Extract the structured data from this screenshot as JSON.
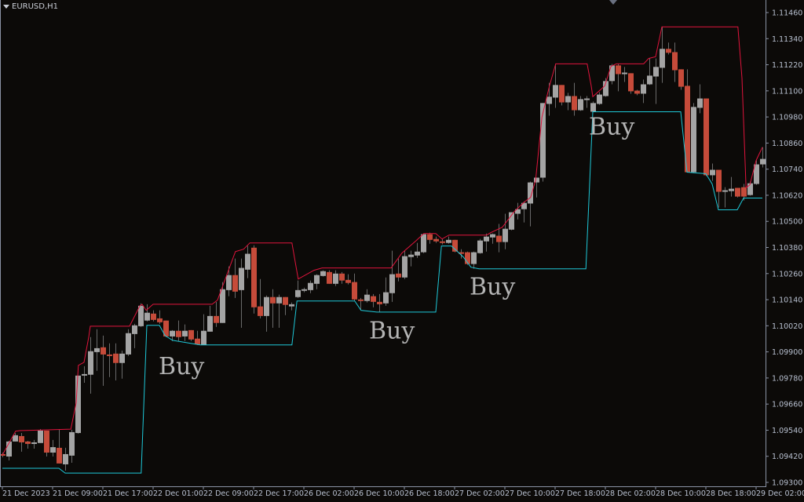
{
  "header": {
    "symbol_label": "EURUSD,H1"
  },
  "colors": {
    "background": "#0c0a08",
    "bull": "#a4a4a4",
    "bear": "#c64b3a",
    "wick": "#6a6a6a",
    "upper_line": "#e0143c",
    "lower_line": "#1ec8d8",
    "axis": "#8a92a4",
    "axis_text": "#b8c0d0",
    "annotation": "#b4b4b4"
  },
  "chart_data": {
    "type": "candlestick",
    "title": "EURUSD,H1",
    "timeframe": "H1",
    "ylim": [
      1.093,
      1.1146
    ],
    "y_ticks": [
      "1.11460",
      "1.11340",
      "1.11220",
      "1.11100",
      "1.10980",
      "1.10860",
      "1.10740",
      "1.10620",
      "1.10500",
      "1.10380",
      "1.10260",
      "1.10140",
      "1.10020",
      "1.09900",
      "1.09780",
      "1.09660",
      "1.09540",
      "1.09420",
      "1.09300"
    ],
    "x_ticks": [
      {
        "bar": 0,
        "label": "21 Dec 2023"
      },
      {
        "bar": 8,
        "label": "21 Dec 09:00"
      },
      {
        "bar": 16,
        "label": "21 Dec 17:00"
      },
      {
        "bar": 24,
        "label": "22 Dec 01:00"
      },
      {
        "bar": 32,
        "label": "22 Dec 09:00"
      },
      {
        "bar": 40,
        "label": "22 Dec 17:00"
      },
      {
        "bar": 48,
        "label": "26 Dec 02:00"
      },
      {
        "bar": 56,
        "label": "26 Dec 10:00"
      },
      {
        "bar": 64,
        "label": "26 Dec 18:00"
      },
      {
        "bar": 72,
        "label": "27 Dec 02:00"
      },
      {
        "bar": 80,
        "label": "27 Dec 10:00"
      },
      {
        "bar": 88,
        "label": "27 Dec 18:00"
      },
      {
        "bar": 96,
        "label": "28 Dec 02:00"
      },
      {
        "bar": 104,
        "label": "28 Dec 10:00"
      },
      {
        "bar": 112,
        "label": "28 Dec 18:00"
      },
      {
        "bar": 120,
        "label": "29 Dec 02:00"
      }
    ],
    "ohlc": [
      [
        1.0943,
        1.09437,
        1.09416,
        1.09423
      ],
      [
        1.09419,
        1.09491,
        1.09401,
        1.09488
      ],
      [
        1.09488,
        1.09527,
        1.09488,
        1.09517
      ],
      [
        1.09513,
        1.09527,
        1.09441,
        1.09484
      ],
      [
        1.09488,
        1.09491,
        1.09455,
        1.09477
      ],
      [
        1.09477,
        1.09495,
        1.09455,
        1.09484
      ],
      [
        1.09481,
        1.09545,
        1.09481,
        1.09538
      ],
      [
        1.09538,
        1.09538,
        1.09419,
        1.09437
      ],
      [
        1.09437,
        1.09495,
        1.09419,
        1.09462
      ],
      [
        1.09459,
        1.09542,
        1.09387,
        1.09387
      ],
      [
        1.09383,
        1.09459,
        1.09354,
        1.0943
      ],
      [
        1.09423,
        1.09542,
        1.0939,
        1.09531
      ],
      [
        1.09527,
        1.09791,
        1.09524,
        1.09791
      ],
      [
        1.09791,
        1.09834,
        1.09758,
        1.09798
      ],
      [
        1.09795,
        1.09968,
        1.09708,
        1.09903
      ],
      [
        1.09899,
        1.10004,
        1.09813,
        1.09917
      ],
      [
        1.09921,
        1.09975,
        1.09744,
        1.09888
      ],
      [
        1.09888,
        1.09939,
        1.09784,
        1.09885
      ],
      [
        1.09892,
        1.09939,
        1.09769,
        1.09849
      ],
      [
        1.09849,
        1.09906,
        1.09777,
        1.09892
      ],
      [
        1.09888,
        1.10004,
        1.09881,
        1.09986
      ],
      [
        1.09982,
        1.10029,
        1.09917,
        1.10022
      ],
      [
        1.10018,
        1.10123,
        1.10015,
        1.10112
      ],
      [
        1.10044,
        1.10119,
        1.1004,
        1.1008
      ],
      [
        1.10076,
        1.10091,
        1.1004,
        1.10047
      ],
      [
        1.10054,
        1.10091,
        1.10029,
        1.10036
      ],
      [
        1.10044,
        1.10044,
        1.09968,
        1.09971
      ],
      [
        1.09971,
        1.1,
        1.0995,
        1.09997
      ],
      [
        1.09997,
        1.10044,
        1.0995,
        1.09968
      ],
      [
        1.09971,
        1.10026,
        1.0995,
        1.09997
      ],
      [
        1.1,
        1.1,
        1.0995,
        1.09957
      ],
      [
        1.09961,
        1.09997,
        1.09932,
        1.09935
      ],
      [
        1.09932,
        1.10073,
        1.09932,
        1.09997
      ],
      [
        1.09993,
        1.10112,
        1.09993,
        1.10065
      ],
      [
        1.10065,
        1.1013,
        1.10015,
        1.10033
      ],
      [
        1.10033,
        1.10221,
        1.10033,
        1.10188
      ],
      [
        1.10184,
        1.10293,
        1.10156,
        1.10253
      ],
      [
        1.10253,
        1.10329,
        1.10148,
        1.10177
      ],
      [
        1.10184,
        1.10329,
        1.10011,
        1.10286
      ],
      [
        1.10278,
        1.10387,
        1.10239,
        1.10351
      ],
      [
        1.10379,
        1.1039,
        1.10076,
        1.10105
      ],
      [
        1.10109,
        1.10235,
        1.10054,
        1.10065
      ],
      [
        1.10065,
        1.10159,
        1.09993,
        1.10152
      ],
      [
        1.10152,
        1.10188,
        1.10011,
        1.10123
      ],
      [
        1.10123,
        1.10163,
        1.10011,
        1.10152
      ],
      [
        1.10152,
        1.10152,
        1.10069,
        1.10116
      ],
      [
        1.10109,
        1.10127,
        1.10091,
        1.10119
      ],
      [
        1.10152,
        1.10228,
        1.10148,
        1.10184
      ],
      [
        1.10181,
        1.10195,
        1.10174,
        1.10188
      ],
      [
        1.10184,
        1.10228,
        1.1017,
        1.10217
      ],
      [
        1.10213,
        1.10257,
        1.10188,
        1.10253
      ],
      [
        1.10249,
        1.10275,
        1.10246,
        1.10271
      ],
      [
        1.10267,
        1.10275,
        1.10213,
        1.10213
      ],
      [
        1.10213,
        1.10275,
        1.10203,
        1.1026
      ],
      [
        1.1026,
        1.10267,
        1.10213,
        1.10228
      ],
      [
        1.10231,
        1.10257,
        1.1021,
        1.10217
      ],
      [
        1.10221,
        1.1026,
        1.10134,
        1.10141
      ],
      [
        1.10141,
        1.10148,
        1.10091,
        1.10134
      ],
      [
        1.10134,
        1.10188,
        1.10127,
        1.10163
      ],
      [
        1.10156,
        1.10166,
        1.10105,
        1.1013
      ],
      [
        1.1013,
        1.10166,
        1.10083,
        1.10119
      ],
      [
        1.10123,
        1.10242,
        1.10112,
        1.10174
      ],
      [
        1.1017,
        1.10365,
        1.1013,
        1.10257
      ],
      [
        1.1026,
        1.10329,
        1.10224,
        1.10242
      ],
      [
        1.10242,
        1.10365,
        1.10235,
        1.1034
      ],
      [
        1.10336,
        1.10365,
        1.10293,
        1.10347
      ],
      [
        1.10343,
        1.10401,
        1.10332,
        1.10361
      ],
      [
        1.10358,
        1.10444,
        1.10354,
        1.10441
      ],
      [
        1.10441,
        1.10448,
        1.10397,
        1.10415
      ],
      [
        1.10419,
        1.1043,
        1.10401,
        1.10408
      ],
      [
        1.10408,
        1.10419,
        1.10394,
        1.10401
      ],
      [
        1.10401,
        1.1043,
        1.10397,
        1.10415
      ],
      [
        1.10415,
        1.10415,
        1.10358,
        1.10361
      ],
      [
        1.10358,
        1.10372,
        1.10329,
        1.10351
      ],
      [
        1.10358,
        1.10361,
        1.103,
        1.10304
      ],
      [
        1.10304,
        1.10361,
        1.10282,
        1.10358
      ],
      [
        1.10354,
        1.10419,
        1.10351,
        1.10412
      ],
      [
        1.10408,
        1.10444,
        1.10361,
        1.1043
      ],
      [
        1.10426,
        1.10444,
        1.10397,
        1.10441
      ],
      [
        1.10434,
        1.10488,
        1.10358,
        1.10405
      ],
      [
        1.10405,
        1.10535,
        1.10372,
        1.10466
      ],
      [
        1.10462,
        1.10542,
        1.10459,
        1.10542
      ],
      [
        1.10535,
        1.10585,
        1.10509,
        1.10556
      ],
      [
        1.10556,
        1.10592,
        1.10495,
        1.10585
      ],
      [
        1.10582,
        1.10683,
        1.10477,
        1.10679
      ],
      [
        1.10679,
        1.10701,
        1.1061,
        1.10701
      ],
      [
        1.10701,
        1.11044,
        1.10683,
        1.11044
      ],
      [
        1.1104,
        1.11137,
        1.10986,
        1.11073
      ],
      [
        1.11069,
        1.11224,
        1.11022,
        1.11127
      ],
      [
        1.11127,
        1.11127,
        1.11033,
        1.11047
      ],
      [
        1.11047,
        1.11091,
        1.11011,
        1.11076
      ],
      [
        1.11076,
        1.11137,
        1.10986,
        1.11011
      ],
      [
        1.11011,
        1.11076,
        1.11008,
        1.11062
      ],
      [
        1.11058,
        1.11076,
        1.11022,
        1.11065
      ],
      [
        1.11004,
        1.11051,
        1.11004,
        1.11044
      ],
      [
        1.1104,
        1.11094,
        1.11036,
        1.11083
      ],
      [
        1.11076,
        1.11159,
        1.11073,
        1.11145
      ],
      [
        1.11145,
        1.11224,
        1.1113,
        1.11217
      ],
      [
        1.11217,
        1.11224,
        1.11098,
        1.11177
      ],
      [
        1.11177,
        1.1121,
        1.11141,
        1.11184
      ],
      [
        1.11181,
        1.11181,
        1.11087,
        1.11098
      ],
      [
        1.11101,
        1.11105,
        1.1108,
        1.11087
      ],
      [
        1.11087,
        1.11152,
        1.11044,
        1.1113
      ],
      [
        1.1113,
        1.11249,
        1.11127,
        1.1117
      ],
      [
        1.11166,
        1.11249,
        1.1104,
        1.1121
      ],
      [
        1.11206,
        1.11394,
        1.11137,
        1.11293
      ],
      [
        1.11293,
        1.11322,
        1.11267,
        1.11275
      ],
      [
        1.11278,
        1.11322,
        1.11141,
        1.11195
      ],
      [
        1.11199,
        1.11199,
        1.11105,
        1.11119
      ],
      [
        1.11123,
        1.11199,
        1.10726,
        1.10726
      ],
      [
        1.10726,
        1.11044,
        1.10722,
        1.11026
      ],
      [
        1.11022,
        1.1113,
        1.10997,
        1.11065
      ],
      [
        1.11065,
        1.11065,
        1.10708,
        1.10712
      ],
      [
        1.10712,
        1.10766,
        1.10686,
        1.10737
      ],
      [
        1.10737,
        1.10737,
        1.10564,
        1.10636
      ],
      [
        1.10636,
        1.10657,
        1.10564,
        1.10643
      ],
      [
        1.10639,
        1.10704,
        1.10614,
        1.1065
      ],
      [
        1.10654,
        1.10654,
        1.1061,
        1.10614
      ],
      [
        1.10657,
        1.10672,
        1.10596,
        1.10614
      ],
      [
        1.10621,
        1.10683,
        1.10618,
        1.10675
      ],
      [
        1.10672,
        1.1078,
        1.10668,
        1.10762
      ],
      [
        1.10762,
        1.10841,
        1.10748,
        1.10787
      ]
    ],
    "upper_line": [
      [
        0,
        1.09426
      ],
      [
        2.1,
        1.09535
      ],
      [
        2.75,
        1.09538
      ],
      [
        10.9,
        1.09545
      ],
      [
        11.75,
        1.09665
      ],
      [
        12.1,
        1.09838
      ],
      [
        13,
        1.09852
      ],
      [
        13.75,
        1.09968
      ],
      [
        14,
        1.10018
      ],
      [
        20.25,
        1.10018
      ],
      [
        21.9,
        1.10112
      ],
      [
        22.25,
        1.10119
      ],
      [
        22.9,
        1.10091
      ],
      [
        24,
        1.10119
      ],
      [
        33.4,
        1.10119
      ],
      [
        34.25,
        1.10138
      ],
      [
        37.1,
        1.10361
      ],
      [
        38.4,
        1.10372
      ],
      [
        39.4,
        1.10401
      ],
      [
        46.1,
        1.10401
      ],
      [
        47.1,
        1.10235
      ],
      [
        49.6,
        1.10275
      ],
      [
        50.9,
        1.10286
      ],
      [
        61.9,
        1.10286
      ],
      [
        63.6,
        1.10354
      ],
      [
        65.9,
        1.10412
      ],
      [
        67.1,
        1.10444
      ],
      [
        69,
        1.10444
      ],
      [
        70,
        1.10419
      ],
      [
        71.1,
        1.10437
      ],
      [
        77.1,
        1.10437
      ],
      [
        77.75,
        1.10448
      ],
      [
        79.6,
        1.10473
      ],
      [
        81.5,
        1.10545
      ],
      [
        83.1,
        1.10589
      ],
      [
        84.1,
        1.1061
      ],
      [
        84.9,
        1.1069
      ],
      [
        85.9,
        1.10979
      ],
      [
        87.1,
        1.11123
      ],
      [
        88.1,
        1.11224
      ],
      [
        93.1,
        1.11224
      ],
      [
        93.75,
        1.11123
      ],
      [
        94,
        1.11073
      ],
      [
        95.9,
        1.11123
      ],
      [
        96.9,
        1.11213
      ],
      [
        97.75,
        1.11224
      ],
      [
        102.1,
        1.11224
      ],
      [
        102.9,
        1.11249
      ],
      [
        104,
        1.11257
      ],
      [
        105,
        1.11394
      ],
      [
        117.1,
        1.11394
      ],
      [
        117.75,
        1.11159
      ],
      [
        118.4,
        1.10654
      ],
      [
        119,
        1.10668
      ],
      [
        120,
        1.1078
      ],
      [
        121,
        1.10841
      ]
    ],
    "lower_line": [
      [
        0,
        1.09365
      ],
      [
        9,
        1.09365
      ],
      [
        10,
        1.09343
      ],
      [
        22.1,
        1.09343
      ],
      [
        23,
        1.10022
      ],
      [
        25,
        1.10022
      ],
      [
        25.9,
        1.09975
      ],
      [
        27.1,
        1.09953
      ],
      [
        31.5,
        1.09932
      ],
      [
        46.1,
        1.09932
      ],
      [
        46.9,
        1.10134
      ],
      [
        56.1,
        1.10134
      ],
      [
        57.1,
        1.10091
      ],
      [
        59.6,
        1.10083
      ],
      [
        69,
        1.10083
      ],
      [
        69.9,
        1.10387
      ],
      [
        71.5,
        1.10387
      ],
      [
        73.4,
        1.10336
      ],
      [
        74.6,
        1.10289
      ],
      [
        75.9,
        1.10282
      ],
      [
        92.9,
        1.10282
      ],
      [
        94,
        1.11004
      ],
      [
        108,
        1.11004
      ],
      [
        109,
        1.10726
      ],
      [
        112,
        1.10719
      ],
      [
        113,
        1.10672
      ],
      [
        114,
        1.10553
      ],
      [
        117,
        1.10553
      ],
      [
        118,
        1.10607
      ],
      [
        121,
        1.10607
      ]
    ],
    "annotations": [
      {
        "text": "Buy",
        "bar": 26.5,
        "price": 1.09834
      },
      {
        "text": "Buy",
        "bar": 60,
        "price": 1.09997
      },
      {
        "text": "Buy",
        "bar": 76,
        "price": 1.10199
      },
      {
        "text": "Buy",
        "bar": 95,
        "price": 1.10935
      }
    ],
    "grid": false
  }
}
